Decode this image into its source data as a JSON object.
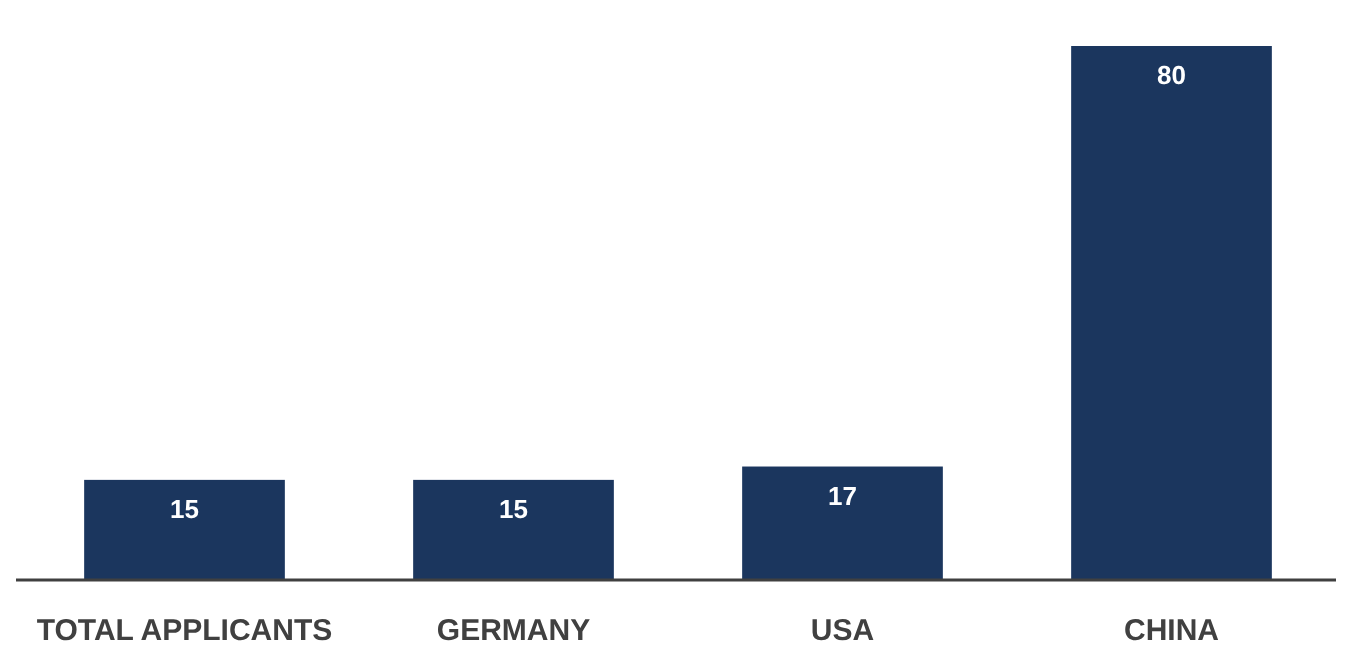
{
  "chart_data": {
    "type": "bar",
    "categories": [
      "TOTAL APPLICANTS",
      "GERMANY",
      "USA",
      "CHINA"
    ],
    "values": [
      15,
      15,
      17,
      80
    ],
    "color": "#1b365e",
    "data_labels": true
  }
}
